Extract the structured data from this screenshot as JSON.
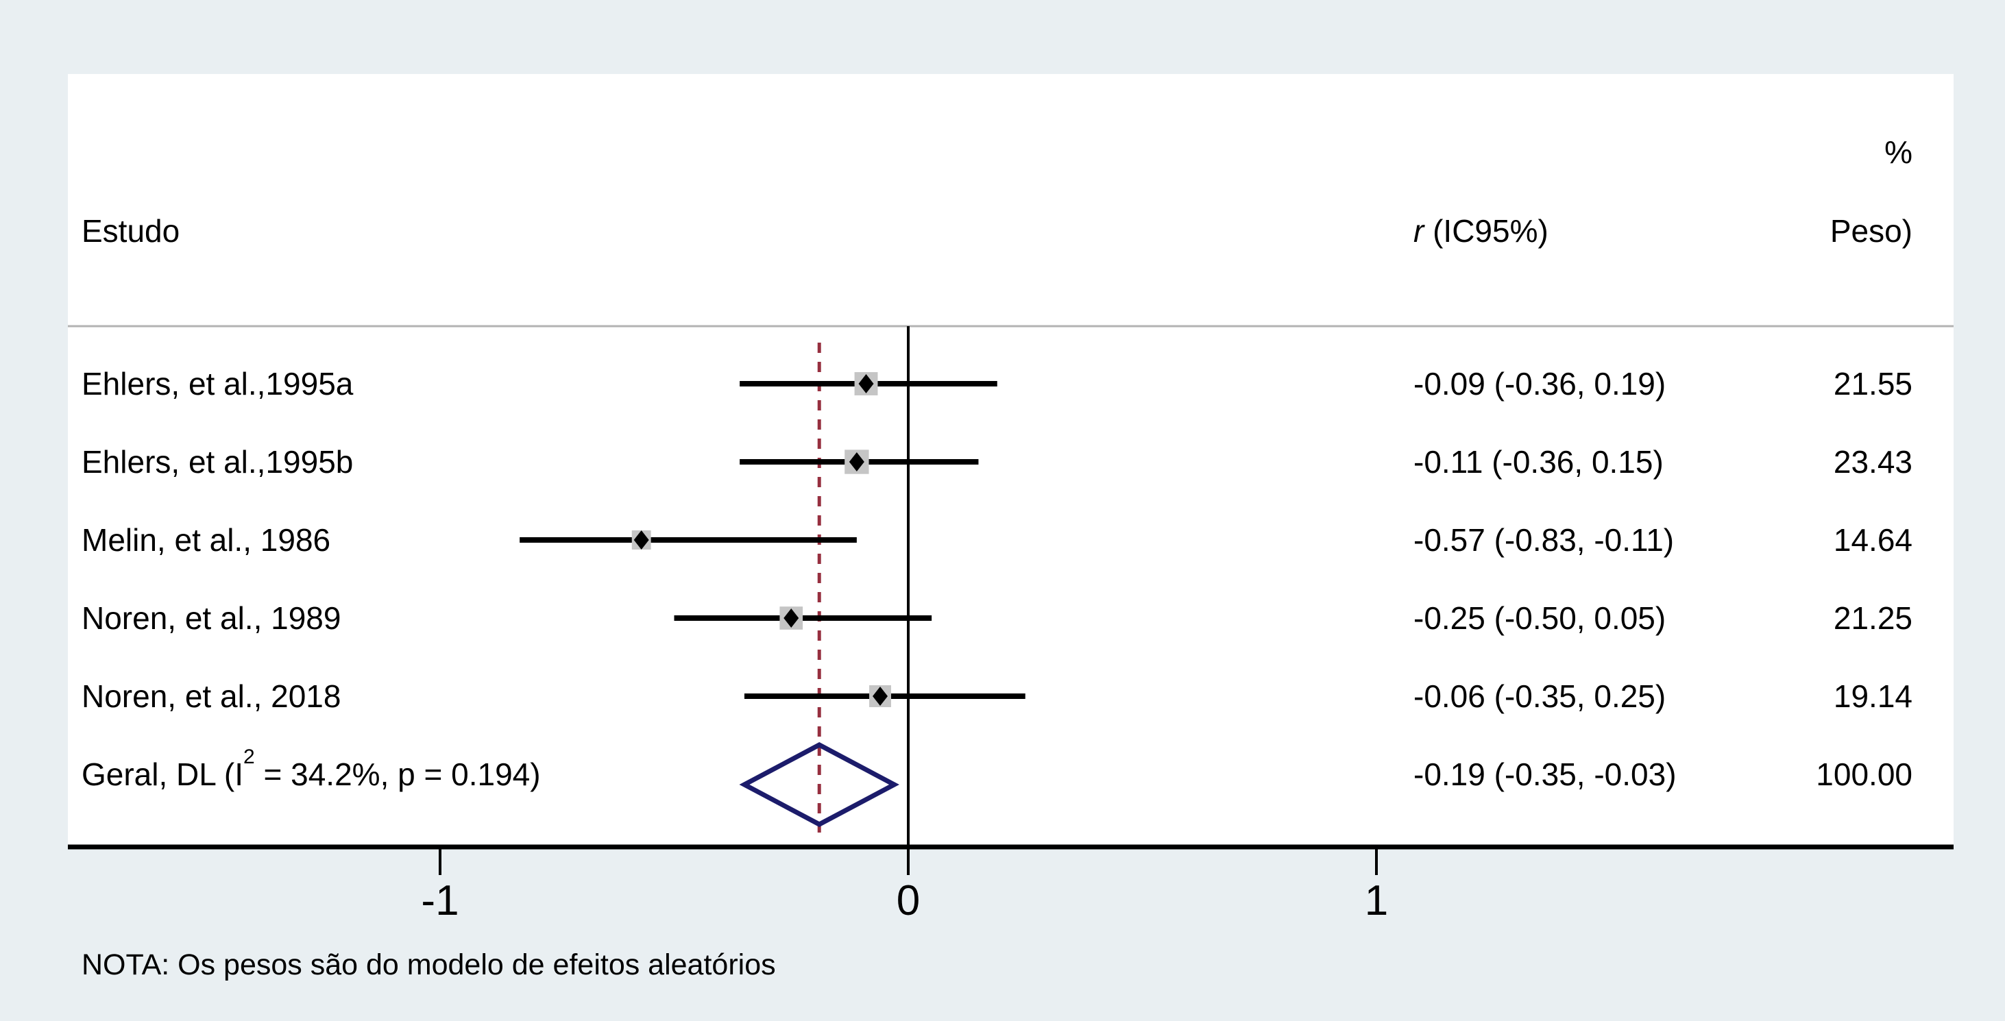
{
  "header": {
    "study_col": "Estudo",
    "effect_col_italic": "r",
    "effect_col_rest": " (IC95%)",
    "weight_col_line1": "%",
    "weight_col_line2": "Peso)"
  },
  "note": "NOTA: Os pesos são do modelo de efeitos aleatórios",
  "colors": {
    "background": "#e9eff2",
    "panel": "#ffffff",
    "text": "#000000",
    "separator_line": "#b3b3b3",
    "axis_line": "#000000",
    "zero_line": "#000000",
    "ci_line": "#000000",
    "weight_box": "#c5c5c5",
    "point_marker": "#000000",
    "pooled_diamond": "#1c1c6b",
    "dashed_pooled_line": "#962f3f"
  },
  "chart_data": {
    "type": "forest",
    "x_axis": {
      "ticks": [
        -1,
        0,
        1
      ],
      "tick_labels": [
        "-1",
        "0",
        "1"
      ],
      "reference_line_x": 0,
      "pooled_dashed_line_x": -0.19
    },
    "studies": [
      {
        "label": "Ehlers, et al.,1995a",
        "effect": -0.09,
        "ci_low": -0.36,
        "ci_high": 0.19,
        "effect_ci_label": "-0.09 (-0.36, 0.19)",
        "weight_pct": 21.55,
        "weight_label": "21.55"
      },
      {
        "label": "Ehlers, et al.,1995b",
        "effect": -0.11,
        "ci_low": -0.36,
        "ci_high": 0.15,
        "effect_ci_label": "-0.11 (-0.36, 0.15)",
        "weight_pct": 23.43,
        "weight_label": "23.43"
      },
      {
        "label": "Melin, et al., 1986",
        "effect": -0.57,
        "ci_low": -0.83,
        "ci_high": -0.11,
        "effect_ci_label": "-0.57 (-0.83, -0.11)",
        "weight_pct": 14.64,
        "weight_label": "14.64"
      },
      {
        "label": "Noren, et al., 1989",
        "effect": -0.25,
        "ci_low": -0.5,
        "ci_high": 0.05,
        "effect_ci_label": "-0.25 (-0.50, 0.05)",
        "weight_pct": 21.25,
        "weight_label": "21.25"
      },
      {
        "label": "Noren, et al., 2018",
        "effect": -0.06,
        "ci_low": -0.35,
        "ci_high": 0.25,
        "effect_ci_label": "-0.06 (-0.35, 0.25)",
        "weight_pct": 19.14,
        "weight_label": "19.14"
      }
    ],
    "overall": {
      "label_pre": "Geral, DL (I",
      "label_sup": "2",
      "label_post": " = 34.2%, p = 0.194)",
      "effect": -0.19,
      "ci_low": -0.35,
      "ci_high": -0.03,
      "effect_ci_label": "-0.19 (-0.35, -0.03)",
      "weight_pct": 100.0,
      "weight_label": "100.00"
    }
  }
}
